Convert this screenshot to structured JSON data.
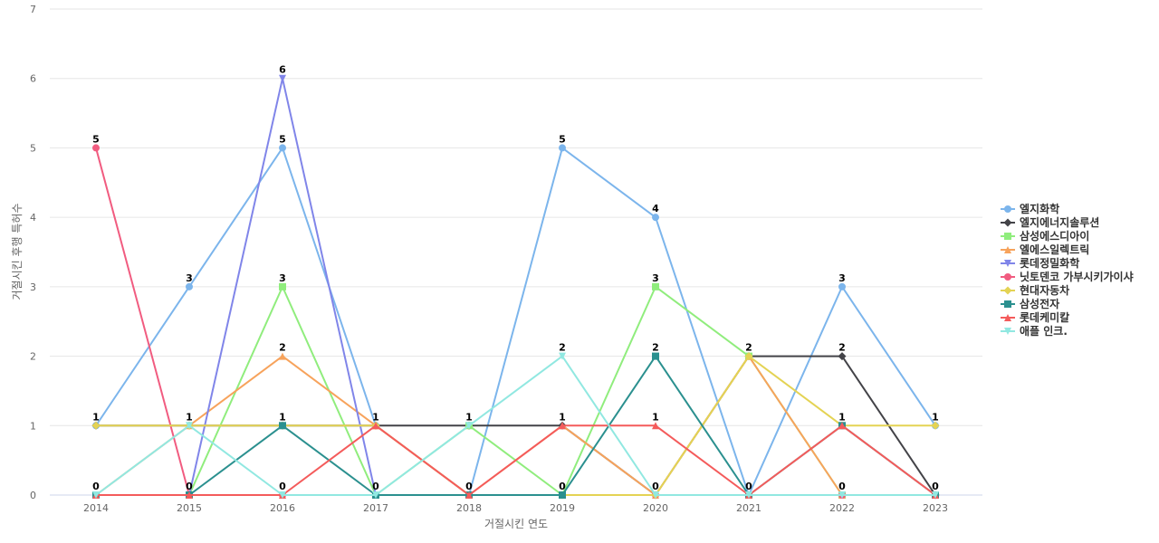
{
  "chart_data": {
    "type": "line",
    "xlabel": "거절시킨 연도",
    "ylabel": "거절시킨 후행 특허수",
    "ylim": [
      0,
      7
    ],
    "yticks": [
      0,
      1,
      2,
      3,
      4,
      5,
      6,
      7
    ],
    "grid": true,
    "legend_position": "right",
    "categories": [
      "2014",
      "2015",
      "2016",
      "2017",
      "2018",
      "2019",
      "2020",
      "2021",
      "2022",
      "2023"
    ],
    "series": [
      {
        "name": "엘지화학",
        "color": "#7cb5ec",
        "marker": "circle",
        "values": [
          1,
          3,
          5,
          1,
          0,
          5,
          4,
          0,
          3,
          1
        ]
      },
      {
        "name": "엘지에너지솔루션",
        "color": "#434348",
        "marker": "diamond",
        "values": [
          1,
          1,
          1,
          1,
          1,
          1,
          0,
          2,
          2,
          0
        ]
      },
      {
        "name": "삼성에스디아이",
        "color": "#90ed7d",
        "marker": "square",
        "values": [
          0,
          0,
          3,
          0,
          1,
          0,
          3,
          2,
          0,
          0
        ]
      },
      {
        "name": "엘에스일렉트릭",
        "color": "#f7a35c",
        "marker": "triangle",
        "values": [
          0,
          1,
          2,
          1,
          0,
          1,
          0,
          2,
          0,
          0
        ]
      },
      {
        "name": "롯데정밀화학",
        "color": "#8085e9",
        "marker": "triangle-down",
        "values": [
          0,
          0,
          6,
          0,
          0,
          0,
          0,
          0,
          0,
          0
        ]
      },
      {
        "name": "닛토덴코 가부시키가이샤",
        "color": "#f15c80",
        "marker": "circle",
        "values": [
          5,
          0,
          0,
          0,
          0,
          0,
          0,
          0,
          0,
          0
        ]
      },
      {
        "name": "현대자동차",
        "color": "#e4d354",
        "marker": "diamond",
        "values": [
          1,
          1,
          1,
          1,
          0,
          0,
          0,
          2,
          1,
          1
        ]
      },
      {
        "name": "삼성전자",
        "color": "#2b908f",
        "marker": "square",
        "values": [
          0,
          0,
          1,
          0,
          0,
          0,
          2,
          0,
          1,
          0
        ]
      },
      {
        "name": "롯데케미칼",
        "color": "#f45b5b",
        "marker": "triangle",
        "values": [
          0,
          0,
          0,
          1,
          0,
          1,
          1,
          0,
          1,
          0
        ]
      },
      {
        "name": "애플 인크.",
        "color": "#91e8e1",
        "marker": "triangle-down",
        "values": [
          0,
          1,
          0,
          0,
          1,
          2,
          0,
          0,
          0,
          0
        ]
      }
    ],
    "data_labels": [
      {
        "x": "2014",
        "y": 5,
        "text": "5"
      },
      {
        "x": "2014",
        "y": 1,
        "text": "1"
      },
      {
        "x": "2014",
        "y": 0,
        "text": "0"
      },
      {
        "x": "2015",
        "y": 3,
        "text": "3"
      },
      {
        "x": "2015",
        "y": 1,
        "text": "1"
      },
      {
        "x": "2015",
        "y": 0,
        "text": "0"
      },
      {
        "x": "2016",
        "y": 6,
        "text": "6"
      },
      {
        "x": "2016",
        "y": 5,
        "text": "5"
      },
      {
        "x": "2016",
        "y": 3,
        "text": "3"
      },
      {
        "x": "2016",
        "y": 2,
        "text": "2"
      },
      {
        "x": "2016",
        "y": 1,
        "text": "1"
      },
      {
        "x": "2016",
        "y": 0,
        "text": "0"
      },
      {
        "x": "2017",
        "y": 1,
        "text": "1"
      },
      {
        "x": "2017",
        "y": 0,
        "text": "0"
      },
      {
        "x": "2018",
        "y": 1,
        "text": "1"
      },
      {
        "x": "2018",
        "y": 0,
        "text": "0"
      },
      {
        "x": "2019",
        "y": 5,
        "text": "5"
      },
      {
        "x": "2019",
        "y": 2,
        "text": "2"
      },
      {
        "x": "2019",
        "y": 1,
        "text": "1"
      },
      {
        "x": "2019",
        "y": 0,
        "text": "0"
      },
      {
        "x": "2020",
        "y": 4,
        "text": "4"
      },
      {
        "x": "2020",
        "y": 3,
        "text": "3"
      },
      {
        "x": "2020",
        "y": 2,
        "text": "2"
      },
      {
        "x": "2020",
        "y": 1,
        "text": "1"
      },
      {
        "x": "2020",
        "y": 0,
        "text": "0"
      },
      {
        "x": "2021",
        "y": 2,
        "text": "2"
      },
      {
        "x": "2021",
        "y": 0,
        "text": "0"
      },
      {
        "x": "2022",
        "y": 3,
        "text": "3"
      },
      {
        "x": "2022",
        "y": 2,
        "text": "2"
      },
      {
        "x": "2022",
        "y": 1,
        "text": "1"
      },
      {
        "x": "2022",
        "y": 0,
        "text": "0"
      },
      {
        "x": "2023",
        "y": 1,
        "text": "1"
      },
      {
        "x": "2023",
        "y": 0,
        "text": "0"
      }
    ]
  }
}
